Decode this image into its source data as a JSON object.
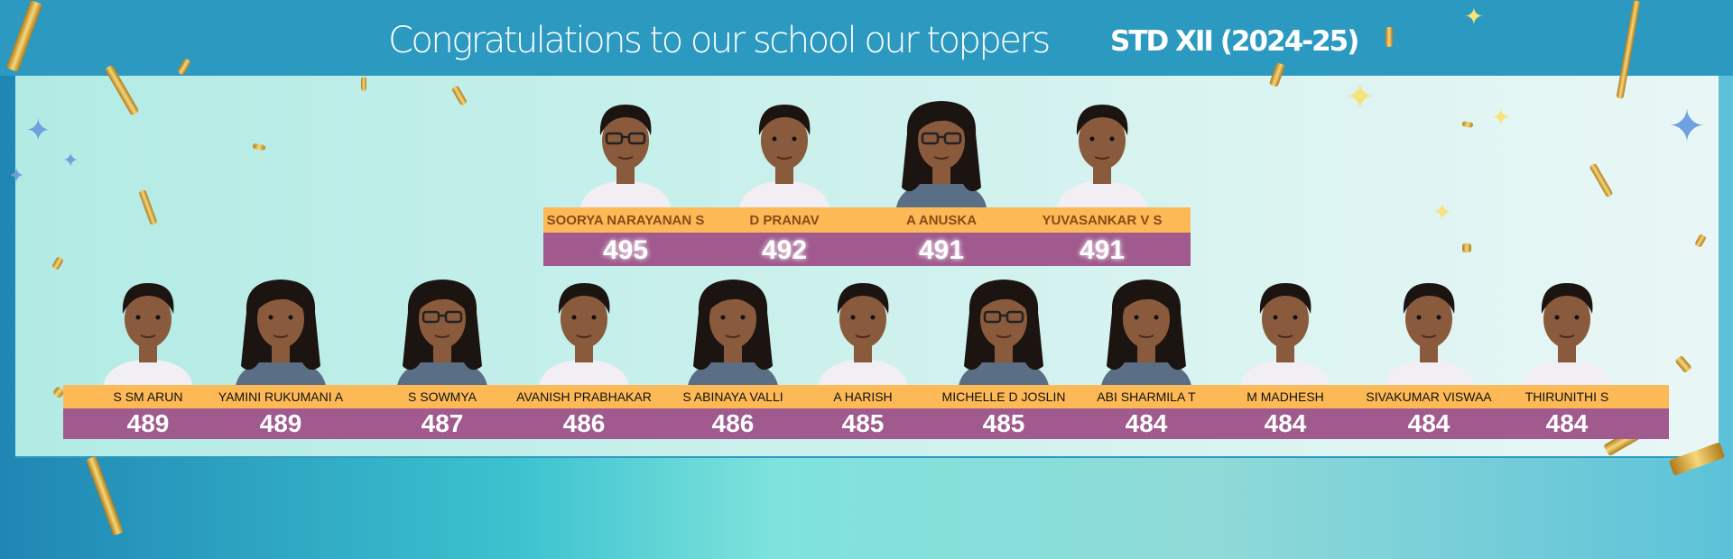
{
  "header": {
    "title": "Congratulations to our school our toppers",
    "subtitle": "STD XII (2024-25)"
  },
  "colors": {
    "header": "#2c99c0",
    "name_strip": "#fdb955",
    "score_strip": "#a05a8e"
  },
  "top_row": [
    {
      "name": "SOORYA NARAYANAN S",
      "score": "495",
      "glasses": true,
      "hair": "short"
    },
    {
      "name": "D PRANAV",
      "score": "492",
      "glasses": false,
      "hair": "short"
    },
    {
      "name": "A ANUSKA",
      "score": "491",
      "glasses": true,
      "hair": "long"
    },
    {
      "name": "YUVASANKAR V S",
      "score": "491",
      "glasses": false,
      "hair": "short"
    }
  ],
  "bottom_row": [
    {
      "name": "S SM ARUN",
      "score": "489",
      "glasses": false,
      "hair": "short"
    },
    {
      "name": "YAMINI RUKUMANI A",
      "score": "489",
      "glasses": false,
      "hair": "long"
    },
    {
      "name": "S SOWMYA",
      "score": "487",
      "glasses": true,
      "hair": "long"
    },
    {
      "name": "AVANISH PRABHAKAR",
      "score": "486",
      "glasses": false,
      "hair": "short"
    },
    {
      "name": "S ABINAYA VALLI",
      "score": "486",
      "glasses": false,
      "hair": "long"
    },
    {
      "name": "A HARISH",
      "score": "485",
      "glasses": false,
      "hair": "short"
    },
    {
      "name": "MICHELLE D JOSLIN",
      "score": "485",
      "glasses": true,
      "hair": "long"
    },
    {
      "name": "ABI SHARMILA T",
      "score": "484",
      "glasses": false,
      "hair": "long"
    },
    {
      "name": "M MADHESH",
      "score": "484",
      "glasses": false,
      "hair": "short"
    },
    {
      "name": "SIVAKUMAR VISWAA",
      "score": "484",
      "glasses": false,
      "hair": "short"
    },
    {
      "name": "THIRUNITHI S",
      "score": "484",
      "glasses": false,
      "hair": "short"
    }
  ]
}
